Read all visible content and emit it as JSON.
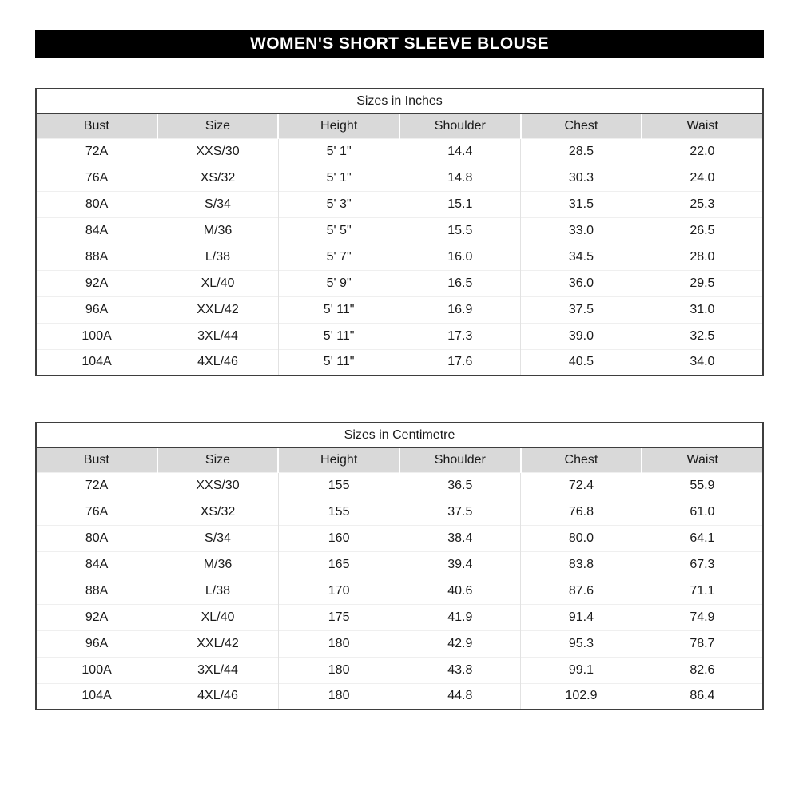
{
  "banner": {
    "title": "WOMEN'S SHORT SLEEVE BLOUSE"
  },
  "colors": {
    "banner_bg": "#000000",
    "banner_text": "#ffffff",
    "header_bg": "#d9d9d9",
    "border_dark": "#3e3e3e"
  },
  "tables": [
    {
      "title": "Sizes in Inches",
      "columns": [
        "Bust",
        "Size",
        "Height",
        "Shoulder",
        "Chest",
        "Waist"
      ],
      "rows": [
        [
          "72A",
          "XXS/30",
          "5' 1\"",
          "14.4",
          "28.5",
          "22.0"
        ],
        [
          "76A",
          "XS/32",
          "5' 1\"",
          "14.8",
          "30.3",
          "24.0"
        ],
        [
          "80A",
          "S/34",
          "5' 3\"",
          "15.1",
          "31.5",
          "25.3"
        ],
        [
          "84A",
          "M/36",
          "5' 5\"",
          "15.5",
          "33.0",
          "26.5"
        ],
        [
          "88A",
          "L/38",
          "5' 7\"",
          "16.0",
          "34.5",
          "28.0"
        ],
        [
          "92A",
          "XL/40",
          "5' 9\"",
          "16.5",
          "36.0",
          "29.5"
        ],
        [
          "96A",
          "XXL/42",
          "5' 11\"",
          "16.9",
          "37.5",
          "31.0"
        ],
        [
          "100A",
          "3XL/44",
          "5' 11\"",
          "17.3",
          "39.0",
          "32.5"
        ],
        [
          "104A",
          "4XL/46",
          "5' 11\"",
          "17.6",
          "40.5",
          "34.0"
        ]
      ]
    },
    {
      "title": "Sizes in Centimetre",
      "columns": [
        "Bust",
        "Size",
        "Height",
        "Shoulder",
        "Chest",
        "Waist"
      ],
      "rows": [
        [
          "72A",
          "XXS/30",
          "155",
          "36.5",
          "72.4",
          "55.9"
        ],
        [
          "76A",
          "XS/32",
          "155",
          "37.5",
          "76.8",
          "61.0"
        ],
        [
          "80A",
          "S/34",
          "160",
          "38.4",
          "80.0",
          "64.1"
        ],
        [
          "84A",
          "M/36",
          "165",
          "39.4",
          "83.8",
          "67.3"
        ],
        [
          "88A",
          "L/38",
          "170",
          "40.6",
          "87.6",
          "71.1"
        ],
        [
          "92A",
          "XL/40",
          "175",
          "41.9",
          "91.4",
          "74.9"
        ],
        [
          "96A",
          "XXL/42",
          "180",
          "42.9",
          "95.3",
          "78.7"
        ],
        [
          "100A",
          "3XL/44",
          "180",
          "43.8",
          "99.1",
          "82.6"
        ],
        [
          "104A",
          "4XL/46",
          "180",
          "44.8",
          "102.9",
          "86.4"
        ]
      ]
    }
  ]
}
